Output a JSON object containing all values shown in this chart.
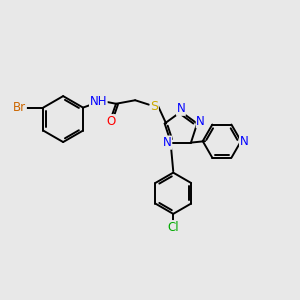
{
  "background_color": "#e8e8e8",
  "bond_color": "#000000",
  "atom_colors": {
    "Br": "#cc6600",
    "N": "#0000ff",
    "O": "#ff0000",
    "S": "#ccaa00",
    "Cl": "#00aa00",
    "H": "#555555",
    "C": "#000000"
  },
  "font_size": 8.5,
  "figsize": [
    3.0,
    3.0
  ],
  "dpi": 100
}
